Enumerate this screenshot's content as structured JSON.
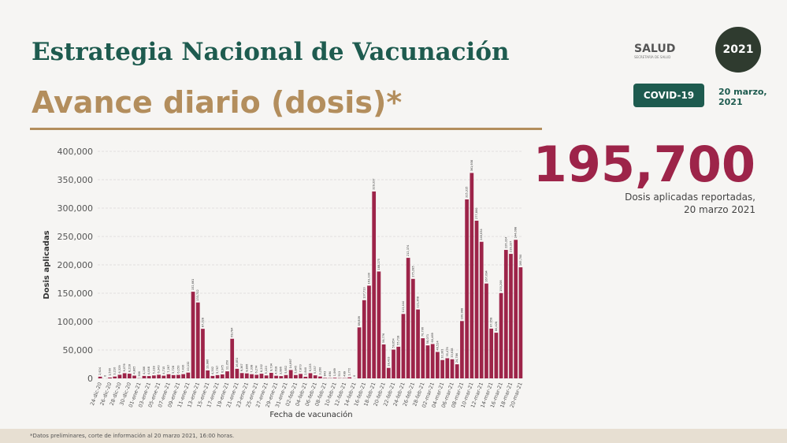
{
  "header": {
    "title": "Estrategia Nacional de Vacunación",
    "subtitle": "Avance diario (dosis)*"
  },
  "logo": {
    "name": "SALUD",
    "sub": "SECRETARÍA DE SALUD",
    "seal": "2021"
  },
  "badge": "COVID-19",
  "date": [
    "20 marzo,",
    "2021"
  ],
  "highlight": {
    "value": "195,700",
    "caption": [
      "Dosis aplicadas reportadas,",
      "20 marzo 2021"
    ]
  },
  "footnote": "*Datos preliminares, corte de información al 20 marzo 2021, 16:00 horas.",
  "chart_data": {
    "type": "bar",
    "ylabel": "Dosis aplicadas",
    "xlabel": "Fecha de vacunación",
    "color": "#9d2449",
    "grid": true,
    "ylim": [
      0,
      400000
    ],
    "yticks": [
      0,
      {
        "value": 50000,
        "label": "50,000"
      },
      {
        "value": 100000,
        "label": "100,000"
      },
      {
        "value": 150000,
        "label": "150,000"
      },
      {
        "value": 200000,
        "label": "200,000"
      },
      {
        "value": 250000,
        "label": "250,000"
      },
      {
        "value": 300000,
        "label": "300,000"
      },
      {
        "value": 350000,
        "label": "350,000"
      },
      {
        "value": 400000,
        "label": "400,000"
      }
    ],
    "categories": [
      "24-dic-20",
      null,
      "26-dic-20",
      null,
      "28-dic-20",
      null,
      "30-dic-20",
      null,
      "01-ene-21",
      null,
      "03-ene-21",
      null,
      "05-ene-21",
      null,
      "07-ene-21",
      null,
      "09-ene-21",
      null,
      "11-ene-21",
      null,
      "13-ene-21",
      null,
      "15-ene-21",
      null,
      "17-ene-21",
      null,
      "19-ene-21",
      null,
      "21-ene-21",
      null,
      "23-ene-21",
      null,
      "25-ene-21",
      null,
      "27-ene-21",
      null,
      "29-ene-21",
      null,
      "31-ene-21",
      null,
      "02-feb-21",
      null,
      "04-feb-21",
      null,
      "06-feb-21",
      null,
      "08-feb-21",
      null,
      "10-feb-21",
      null,
      "12-feb-21",
      null,
      "14-feb-21",
      null,
      "16-feb-21",
      null,
      "18-feb-21",
      null,
      "20-feb-21",
      null,
      "22-feb-21",
      null,
      "24-feb-21",
      null,
      "26-feb-21",
      null,
      "28-feb-21",
      null,
      "02-mar-21",
      null,
      "04-mar-21",
      null,
      "06-mar-21",
      null,
      "08-mar-21",
      null,
      "10-mar-21",
      null,
      "12-mar-21",
      null,
      "14-mar-21",
      null,
      "16-mar-21",
      null,
      "18-mar-21",
      null,
      "20-mar-21"
    ],
    "values": [
      2924,
      0,
      1500,
      3210,
      6329,
      9079,
      8218,
      4805,
      386,
      4286,
      4048,
      5118,
      6343,
      4715,
      7267,
      5728,
      6150,
      7430,
      10132,
      152661,
      133712,
      87328,
      13986,
      4302,
      5767,
      6975,
      12350,
      69784,
      16851,
      9367,
      8806,
      7338,
      6274,
      8202,
      5120,
      9734,
      4618,
      3996,
      5852,
      14697,
      5845,
      7873,
      2840,
      9133,
      5337,
      3260,
      843,
      494,
      1069,
      513,
      499,
      1772,
      0,
      89809,
      137713,
      163330,
      329337,
      188275,
      59776,
      18433,
      50654,
      55718,
      113444,
      212374,
      175285,
      121368,
      70706,
      58071,
      60469,
      46524,
      32301,
      35476,
      33638,
      24786,
      100988,
      315315,
      361938,
      277800,
      240634,
      167094,
      87658,
      80426,
      150208,
      226324,
      219337,
      244098,
      195700
    ],
    "value_labels": [
      "2,924",
      "0",
      "1,500",
      "3,210",
      "6,329",
      "9,079",
      "8,218",
      "4,805",
      "386",
      "4,286",
      "4,048",
      "5,118",
      "6,343",
      "4,715",
      "7,267",
      "5,728",
      "6,150",
      "7,430",
      "10,132",
      "152,661",
      "133,712",
      "87,328",
      "13,986",
      "4,302",
      "5,767",
      "6,975",
      "12,350",
      "69,784",
      "16,851",
      "9,367",
      "8,806",
      "7,338",
      "6,274",
      "8,202",
      "5,120",
      "9,734",
      "4,618",
      "3,996",
      "5,852",
      "14,697",
      "5,845",
      "7,873",
      "2,840",
      "9,133",
      "5,337",
      "3,260",
      "843",
      "494",
      "1,069",
      "513",
      "499",
      "1,772",
      "0",
      "89,809",
      "137,713",
      "163,330",
      "329,337",
      "188,275",
      "59,776",
      "18,433",
      "50,654",
      "55,718",
      "113,444",
      "212,374",
      "175,285",
      "121,368",
      "70,706",
      "58,071",
      "60,469",
      "46,524",
      "32,301",
      "35,476",
      "33,638",
      "24,786",
      "100,988",
      "315,315",
      "361,938",
      "277,800",
      "240,634",
      "167,094",
      "87,658",
      "80,426",
      "150,208",
      "226,324",
      "219,337",
      "244,098",
      "195,700"
    ]
  }
}
